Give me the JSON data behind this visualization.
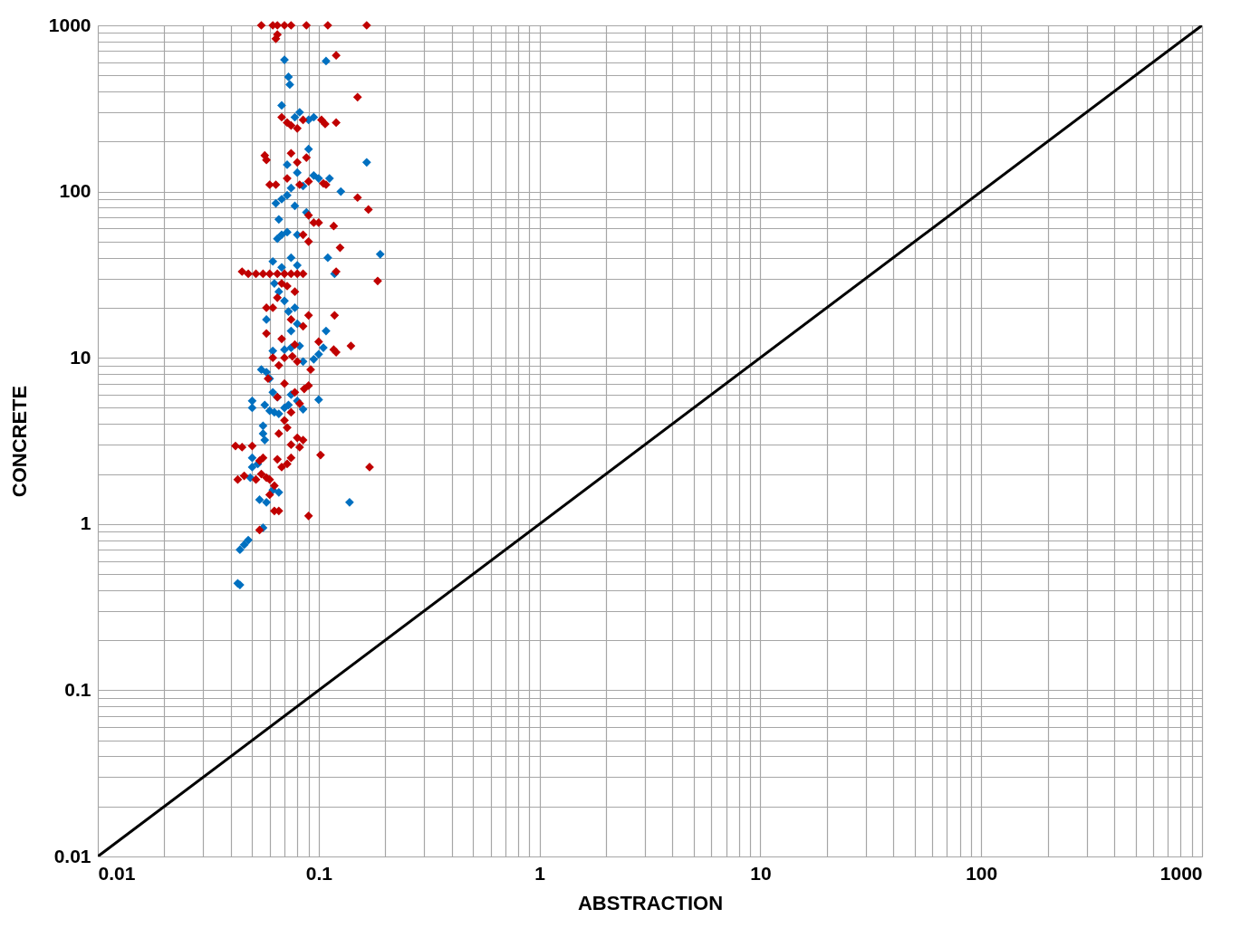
{
  "chart_data": {
    "type": "scatter",
    "xlabel": "ABSTRACTION",
    "ylabel": "CONCRETE",
    "log": "xy",
    "grid": true,
    "xlim": [
      0.01,
      1000
    ],
    "ylim": [
      0.01,
      1000
    ],
    "xticks": [
      0.01,
      {
        "value": 0.02,
        "label": null
      },
      {
        "value": 0.03,
        "label": null
      },
      {
        "value": 0.04,
        "label": null
      },
      {
        "value": 0.05,
        "label": null
      },
      {
        "value": 0.06,
        "label": null
      },
      {
        "value": 0.07,
        "label": null
      },
      {
        "value": 0.08,
        "label": null
      },
      {
        "value": 0.09,
        "label": null
      },
      0.1,
      {
        "value": 0.2,
        "label": null
      },
      {
        "value": 0.3,
        "label": null
      },
      {
        "value": 0.4,
        "label": null
      },
      {
        "value": 0.5,
        "label": null
      },
      {
        "value": 0.6,
        "label": null
      },
      {
        "value": 0.7,
        "label": null
      },
      {
        "value": 0.8,
        "label": null
      },
      {
        "value": 0.9,
        "label": null
      },
      1,
      {
        "value": 2,
        "label": null
      },
      {
        "value": 3,
        "label": null
      },
      {
        "value": 4,
        "label": null
      },
      {
        "value": 5,
        "label": null
      },
      {
        "value": 6,
        "label": null
      },
      {
        "value": 7,
        "label": null
      },
      {
        "value": 8,
        "label": null
      },
      {
        "value": 9,
        "label": null
      },
      10,
      {
        "value": 20,
        "label": null
      },
      {
        "value": 30,
        "label": null
      },
      {
        "value": 40,
        "label": null
      },
      {
        "value": 50,
        "label": null
      },
      {
        "value": 60,
        "label": null
      },
      {
        "value": 70,
        "label": null
      },
      {
        "value": 80,
        "label": null
      },
      {
        "value": 90,
        "label": null
      },
      100,
      {
        "value": 200,
        "label": null
      },
      {
        "value": 300,
        "label": null
      },
      {
        "value": 400,
        "label": null
      },
      {
        "value": 500,
        "label": null
      },
      {
        "value": 600,
        "label": null
      },
      {
        "value": 700,
        "label": null
      },
      {
        "value": 800,
        "label": null
      },
      {
        "value": 900,
        "label": null
      },
      1000
    ],
    "yticks": [
      0.01,
      {
        "value": 0.02,
        "label": null
      },
      {
        "value": 0.03,
        "label": null
      },
      {
        "value": 0.04,
        "label": null
      },
      {
        "value": 0.05,
        "label": null
      },
      {
        "value": 0.06,
        "label": null
      },
      {
        "value": 0.07,
        "label": null
      },
      {
        "value": 0.08,
        "label": null
      },
      {
        "value": 0.09,
        "label": null
      },
      0.1,
      {
        "value": 0.2,
        "label": null
      },
      {
        "value": 0.3,
        "label": null
      },
      {
        "value": 0.4,
        "label": null
      },
      {
        "value": 0.5,
        "label": null
      },
      {
        "value": 0.6,
        "label": null
      },
      {
        "value": 0.7,
        "label": null
      },
      {
        "value": 0.8,
        "label": null
      },
      {
        "value": 0.9,
        "label": null
      },
      1,
      {
        "value": 2,
        "label": null
      },
      {
        "value": 3,
        "label": null
      },
      {
        "value": 4,
        "label": null
      },
      {
        "value": 5,
        "label": null
      },
      {
        "value": 6,
        "label": null
      },
      {
        "value": 7,
        "label": null
      },
      {
        "value": 8,
        "label": null
      },
      {
        "value": 9,
        "label": null
      },
      10,
      {
        "value": 20,
        "label": null
      },
      {
        "value": 30,
        "label": null
      },
      {
        "value": 40,
        "label": null
      },
      {
        "value": 50,
        "label": null
      },
      {
        "value": 60,
        "label": null
      },
      {
        "value": 70,
        "label": null
      },
      {
        "value": 80,
        "label": null
      },
      {
        "value": 90,
        "label": null
      },
      100,
      {
        "value": 200,
        "label": null
      },
      {
        "value": 300,
        "label": null
      },
      {
        "value": 400,
        "label": null
      },
      {
        "value": 500,
        "label": null
      },
      {
        "value": 600,
        "label": null
      },
      {
        "value": 700,
        "label": null
      },
      {
        "value": 800,
        "label": null
      },
      {
        "value": 900,
        "label": null
      },
      1000
    ],
    "series": [
      {
        "color": "#0070c0",
        "marker": "diamond",
        "x": [
          0.07,
          0.108,
          0.073,
          0.074,
          0.068,
          0.082,
          0.078,
          0.09,
          0.095,
          0.09,
          0.165,
          0.072,
          0.08,
          0.095,
          0.1,
          0.112,
          0.126,
          0.075,
          0.085,
          0.064,
          0.068,
          0.072,
          0.078,
          0.066,
          0.088,
          0.068,
          0.072,
          0.08,
          0.065,
          0.19,
          0.11,
          0.075,
          0.062,
          0.08,
          0.068,
          0.118,
          0.063,
          0.066,
          0.07,
          0.073,
          0.078,
          0.058,
          0.075,
          0.108,
          0.08,
          0.062,
          0.07,
          0.075,
          0.082,
          0.105,
          0.1,
          0.095,
          0.085,
          0.055,
          0.058,
          0.06,
          0.062,
          0.075,
          0.1,
          0.065,
          0.05,
          0.05,
          0.057,
          0.06,
          0.063,
          0.066,
          0.07,
          0.073,
          0.08,
          0.085,
          0.056,
          0.056,
          0.057,
          0.05,
          0.05,
          0.049,
          0.053,
          0.062,
          0.066,
          0.054,
          0.058,
          0.138,
          0.056,
          0.048,
          0.046,
          0.044,
          0.043,
          0.044
        ],
        "values": [
          620,
          610,
          490,
          440,
          330,
          300,
          280,
          270,
          280,
          180,
          150,
          145,
          130,
          125,
          120,
          120,
          100,
          105,
          108,
          85,
          90,
          95,
          82,
          68,
          75,
          55,
          57,
          55,
          52,
          42,
          40,
          40,
          38,
          36,
          35,
          32,
          28,
          25,
          22,
          19,
          20,
          17,
          14.5,
          14.5,
          16,
          11,
          11.2,
          11.5,
          11.8,
          11.5,
          10.5,
          9.8,
          9.5,
          8.5,
          8.2,
          7.5,
          6.2,
          6,
          5.6,
          5.8,
          5.5,
          5,
          5.2,
          4.8,
          4.7,
          4.6,
          5,
          5.2,
          5.5,
          4.9,
          3.9,
          3.5,
          3.2,
          2.5,
          2.2,
          1.9,
          2.3,
          1.6,
          1.55,
          1.4,
          1.35,
          1.35,
          0.95,
          0.8,
          0.75,
          0.7,
          0.44,
          0.43
        ]
      },
      {
        "color": "#c00000",
        "marker": "diamond",
        "x": [
          0.055,
          0.062,
          0.065,
          0.07,
          0.075,
          0.088,
          0.11,
          0.165,
          0.065,
          0.064,
          0.12,
          0.15,
          0.068,
          0.072,
          0.075,
          0.08,
          0.085,
          0.103,
          0.107,
          0.12,
          0.057,
          0.058,
          0.075,
          0.08,
          0.088,
          0.072,
          0.082,
          0.06,
          0.064,
          0.09,
          0.105,
          0.108,
          0.15,
          0.168,
          0.09,
          0.095,
          0.1,
          0.117,
          0.085,
          0.09,
          0.125,
          0.045,
          0.048,
          0.052,
          0.056,
          0.06,
          0.065,
          0.07,
          0.075,
          0.08,
          0.085,
          0.12,
          0.185,
          0.068,
          0.072,
          0.078,
          0.065,
          0.058,
          0.062,
          0.09,
          0.118,
          0.075,
          0.085,
          0.058,
          0.068,
          0.1,
          0.078,
          0.14,
          0.117,
          0.12,
          0.062,
          0.07,
          0.076,
          0.08,
          0.092,
          0.066,
          0.059,
          0.07,
          0.086,
          0.09,
          0.078,
          0.065,
          0.082,
          0.075,
          0.07,
          0.072,
          0.066,
          0.08,
          0.085,
          0.075,
          0.082,
          0.042,
          0.045,
          0.05,
          0.056,
          0.054,
          0.065,
          0.075,
          0.072,
          0.068,
          0.102,
          0.17,
          0.043,
          0.046,
          0.055,
          0.058,
          0.06,
          0.052,
          0.063,
          0.06,
          0.063,
          0.066,
          0.09,
          0.054
        ],
        "values": [
          1000,
          1000,
          1000,
          1000,
          1000,
          1000,
          1000,
          1000,
          880,
          830,
          660,
          370,
          280,
          260,
          250,
          240,
          270,
          270,
          255,
          260,
          165,
          155,
          170,
          150,
          160,
          120,
          110,
          110,
          110,
          115,
          112,
          110,
          92,
          78,
          72,
          65,
          65,
          62,
          55,
          50,
          46,
          33,
          32,
          32,
          32,
          32,
          32,
          32,
          32,
          32,
          32,
          33,
          29,
          28,
          27,
          25,
          23,
          20,
          20,
          18,
          18,
          17,
          15.5,
          14,
          13,
          12.5,
          12,
          11.8,
          11.2,
          10.8,
          10,
          10,
          10.2,
          9.5,
          8.5,
          9,
          7.5,
          7,
          6.5,
          6.8,
          6.2,
          5.8,
          5.3,
          4.7,
          4.2,
          3.8,
          3.5,
          3.3,
          3.2,
          3,
          2.9,
          2.95,
          2.9,
          2.95,
          2.5,
          2.4,
          2.45,
          2.5,
          2.3,
          2.2,
          2.6,
          2.2,
          1.85,
          1.95,
          2,
          1.9,
          1.85,
          1.85,
          1.7,
          1.5,
          1.2,
          1.2,
          1.12,
          0.92
        ]
      },
      {
        "type": "line",
        "color": "#000000",
        "x": [
          0.01,
          1000
        ],
        "values": [
          0.01,
          1000
        ]
      }
    ]
  }
}
